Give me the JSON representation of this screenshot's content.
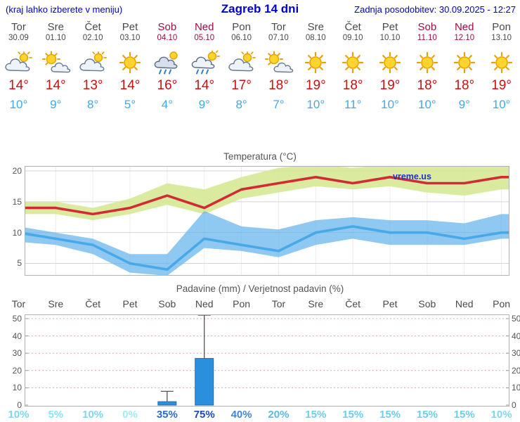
{
  "header": {
    "left_note": "(kraj lahko izberete v meniju)",
    "title": "Zagreb 14 dni",
    "updated": "Zadnja posodobitev: 30.09.2025 - 12:27"
  },
  "colors": {
    "header_blue": "#0000cc",
    "weekday_gray": "#4a4a4a",
    "weekend_red": "#a10d3c",
    "high_temp_red": "#cc1111",
    "low_temp_blue": "#3fa9ee",
    "bar_blue": "#2a8fdc"
  },
  "forecast_days": [
    {
      "name": "Tor",
      "date": "30.09",
      "weekend": false,
      "icon": "cloud-sun",
      "high": "14°",
      "low": "10°"
    },
    {
      "name": "Sre",
      "date": "01.10",
      "weekend": false,
      "icon": "sun-cloud",
      "high": "14°",
      "low": "9°"
    },
    {
      "name": "Čet",
      "date": "02.10",
      "weekend": false,
      "icon": "cloud-sun",
      "high": "13°",
      "low": "8°"
    },
    {
      "name": "Pet",
      "date": "03.10",
      "weekend": false,
      "icon": "sunny",
      "high": "14°",
      "low": "5°"
    },
    {
      "name": "Sob",
      "date": "04.10",
      "weekend": true,
      "icon": "rain",
      "high": "16°",
      "low": "4°"
    },
    {
      "name": "Ned",
      "date": "05.10",
      "weekend": true,
      "icon": "sun-rain",
      "high": "14°",
      "low": "9°"
    },
    {
      "name": "Pon",
      "date": "06.10",
      "weekend": false,
      "icon": "cloud-sun",
      "high": "17°",
      "low": "8°"
    },
    {
      "name": "Tor",
      "date": "07.10",
      "weekend": false,
      "icon": "sun-cloud",
      "high": "18°",
      "low": "7°"
    },
    {
      "name": "Sre",
      "date": "08.10",
      "weekend": false,
      "icon": "sunny",
      "high": "19°",
      "low": "10°"
    },
    {
      "name": "Čet",
      "date": "09.10",
      "weekend": false,
      "icon": "sunny",
      "high": "18°",
      "low": "11°"
    },
    {
      "name": "Pet",
      "date": "10.10",
      "weekend": false,
      "icon": "sunny",
      "high": "19°",
      "low": "10°"
    },
    {
      "name": "Sob",
      "date": "11.10",
      "weekend": true,
      "icon": "sunny",
      "high": "18°",
      "low": "10°"
    },
    {
      "name": "Ned",
      "date": "12.10",
      "weekend": true,
      "icon": "sunny",
      "high": "18°",
      "low": "9°"
    },
    {
      "name": "Pon",
      "date": "13.10",
      "weekend": false,
      "icon": "sunny",
      "high": "19°",
      "low": "10°"
    }
  ],
  "chart_data": [
    {
      "type": "line",
      "title": "Temperatura (°C)",
      "watermark": "vreme.us",
      "categories": [
        "Tor",
        "Sre",
        "Čet",
        "Pet",
        "Sob",
        "Ned",
        "Pon",
        "Tor",
        "Sre",
        "Čet",
        "Pet",
        "Sob",
        "Ned",
        "Pon"
      ],
      "yticks": [
        5,
        10,
        15,
        20
      ],
      "ylim": [
        3.0,
        20.8
      ],
      "grid": true,
      "series": [
        {
          "name": "max-temp",
          "color": "#d22b35",
          "values": [
            14,
            14,
            13,
            14,
            16,
            14,
            17,
            18,
            19,
            18,
            19,
            18,
            18,
            19
          ]
        },
        {
          "name": "min-temp",
          "color": "#48a8e8",
          "values": [
            10,
            9,
            8,
            5,
            4,
            9,
            8,
            7,
            10,
            11,
            10,
            10,
            9,
            10
          ]
        }
      ],
      "bands": [
        {
          "name": "max-range",
          "color": "rgba(212,231,143,0.85)",
          "upper": [
            15,
            15,
            14,
            15.5,
            18,
            17,
            19,
            20.5,
            21,
            20.5,
            21,
            21,
            21,
            22
          ],
          "lower": [
            13,
            13,
            12,
            13,
            14.5,
            13,
            15.5,
            16.5,
            17.5,
            17,
            17.5,
            16.5,
            16,
            17
          ]
        },
        {
          "name": "min-range",
          "color": "rgba(100,180,235,0.72)",
          "upper": [
            11,
            10,
            9,
            6.5,
            6.5,
            13.5,
            11,
            10.5,
            12,
            12.5,
            12,
            12,
            11.5,
            13
          ],
          "lower": [
            8.5,
            8,
            6.5,
            3.5,
            3,
            7.5,
            7,
            6,
            8,
            9,
            8,
            8,
            8,
            9
          ]
        }
      ]
    },
    {
      "type": "bar",
      "title": "Padavine (mm) / Verjetnost padavin (%)",
      "categories": [
        {
          "label": "Tor",
          "weekend": false
        },
        {
          "label": "Sre",
          "weekend": false
        },
        {
          "label": "Čet",
          "weekend": false
        },
        {
          "label": "Pet",
          "weekend": false
        },
        {
          "label": "Sob",
          "weekend": true
        },
        {
          "label": "Ned",
          "weekend": true
        },
        {
          "label": "Pon",
          "weekend": false
        },
        {
          "label": "Tor",
          "weekend": false
        },
        {
          "label": "Sre",
          "weekend": false
        },
        {
          "label": "Čet",
          "weekend": false
        },
        {
          "label": "Pet",
          "weekend": false
        },
        {
          "label": "Sob",
          "weekend": true
        },
        {
          "label": "Ned",
          "weekend": true
        },
        {
          "label": "Pon",
          "weekend": false
        }
      ],
      "values": [
        0,
        0,
        0,
        0,
        2,
        27,
        0,
        0,
        0,
        0,
        0,
        0,
        0,
        0
      ],
      "whiskers": [
        0,
        0,
        0,
        0,
        8,
        52,
        0,
        0,
        0,
        0,
        0,
        0,
        0,
        0
      ],
      "yticks": [
        0,
        10,
        20,
        30,
        40,
        50
      ],
      "ylim": [
        0,
        52.5
      ],
      "bar_color": "#2a8fdc",
      "probabilities": [
        {
          "label": "10%",
          "color": "#7dd8ee"
        },
        {
          "label": "5%",
          "color": "#8ee2f2"
        },
        {
          "label": "10%",
          "color": "#7dd8ee"
        },
        {
          "label": "0%",
          "color": "#9febf6"
        },
        {
          "label": "35%",
          "color": "#2e6bc8"
        },
        {
          "label": "75%",
          "color": "#1d49b4"
        },
        {
          "label": "40%",
          "color": "#3f87d2"
        },
        {
          "label": "20%",
          "color": "#5fb9e6"
        },
        {
          "label": "15%",
          "color": "#6fcdea"
        },
        {
          "label": "15%",
          "color": "#6fcdea"
        },
        {
          "label": "15%",
          "color": "#6fcdea"
        },
        {
          "label": "15%",
          "color": "#6fcdea"
        },
        {
          "label": "15%",
          "color": "#6fcdea"
        },
        {
          "label": "10%",
          "color": "#7dd8ee"
        }
      ]
    }
  ]
}
